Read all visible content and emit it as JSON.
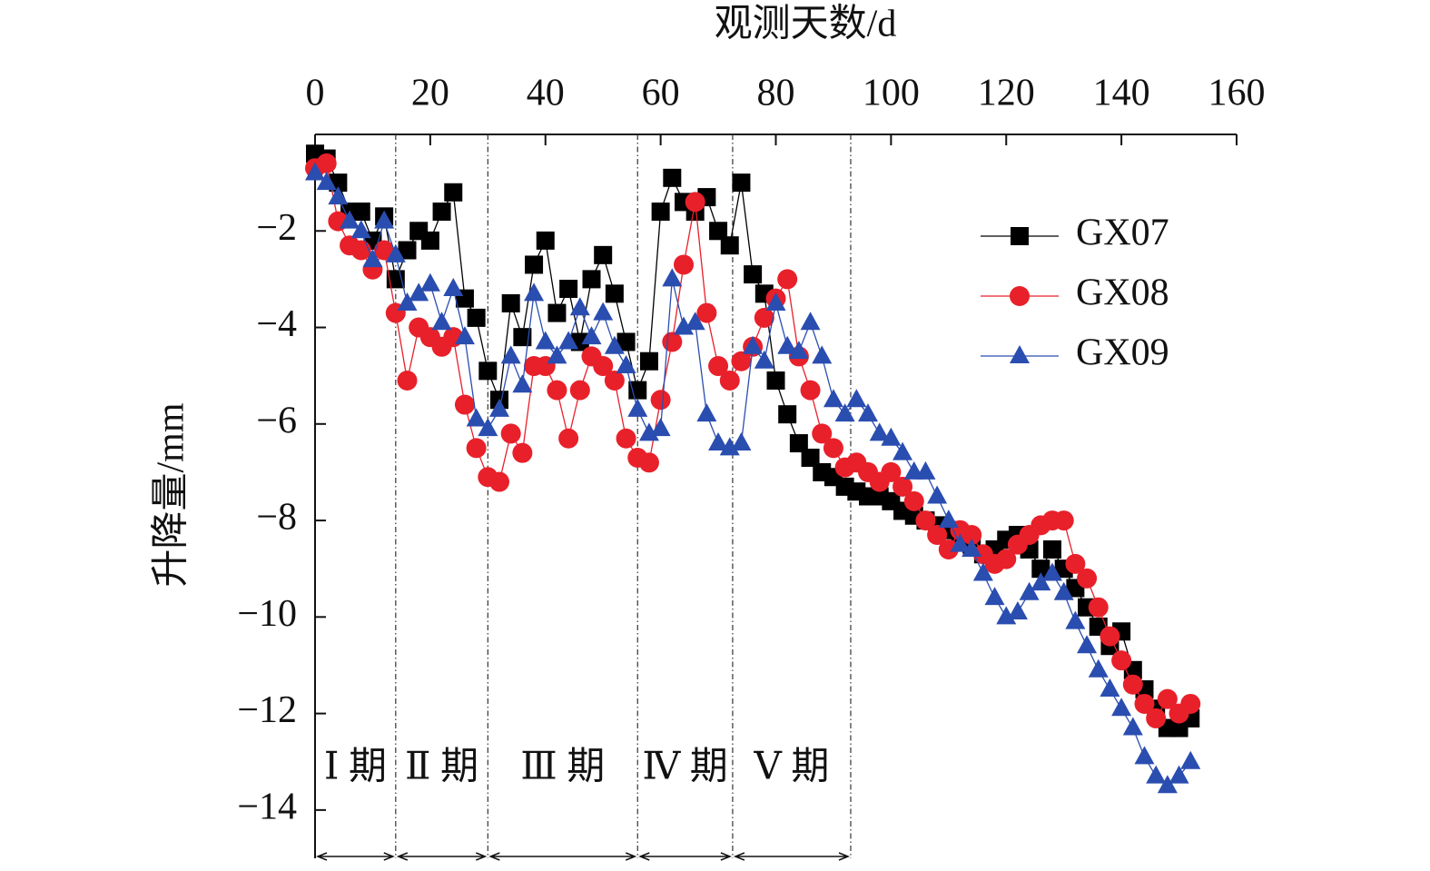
{
  "chart_data": {
    "type": "line",
    "x_label": "观测天数/d",
    "y_label": "升降量/mm",
    "xlim": [
      0,
      160
    ],
    "xticks": [
      0,
      20,
      40,
      60,
      80,
      100,
      120,
      140,
      160
    ],
    "ylim": [
      -15,
      0
    ],
    "yticks": [
      {
        "value": -2,
        "label": "−2"
      },
      {
        "value": -4,
        "label": "−4"
      },
      {
        "value": -6,
        "label": "−6"
      },
      {
        "value": -8,
        "label": "−8"
      },
      {
        "value": -10,
        "label": "−10"
      },
      {
        "value": -12,
        "label": "−12"
      },
      {
        "value": -14,
        "label": "−14"
      }
    ],
    "legend": "upper right",
    "period_bounds": [
      0,
      14,
      30,
      56,
      72.5,
      93
    ],
    "period_labels": [
      "Ⅰ 期",
      "Ⅱ 期",
      "Ⅲ 期",
      "Ⅳ 期",
      "Ⅴ 期"
    ],
    "x": [
      0,
      2,
      4,
      6,
      8,
      10,
      12,
      14,
      16,
      18,
      20,
      22,
      24,
      26,
      28,
      30,
      32,
      34,
      36,
      38,
      40,
      42,
      44,
      46,
      48,
      50,
      52,
      54,
      56,
      58,
      60,
      62,
      64,
      66,
      68,
      70,
      72,
      74,
      76,
      78,
      80,
      82,
      84,
      86,
      88,
      90,
      92,
      94,
      96,
      98,
      100,
      102,
      104,
      106,
      108,
      110,
      112,
      114,
      116,
      118,
      120,
      122,
      124,
      126,
      128,
      130,
      132,
      134,
      136,
      138,
      140,
      142,
      144,
      146,
      148,
      150,
      152
    ],
    "series": [
      {
        "name": "GX07",
        "color": "#000000",
        "marker": "square",
        "values": [
          -0.4,
          -0.5,
          -1.0,
          -1.6,
          -1.6,
          -2.2,
          -1.7,
          -3.0,
          -2.4,
          -2.0,
          -2.2,
          -1.6,
          -1.2,
          -3.4,
          -3.8,
          -4.9,
          -5.5,
          -3.5,
          -4.2,
          -2.7,
          -2.2,
          -3.7,
          -3.2,
          -4.3,
          -3.0,
          -2.5,
          -3.3,
          -4.3,
          -5.3,
          -4.7,
          -1.6,
          -0.9,
          -1.4,
          -1.6,
          -1.3,
          -2.0,
          -2.3,
          -1.0,
          -2.9,
          -3.3,
          -5.1,
          -5.8,
          -6.4,
          -6.7,
          -7.0,
          -7.1,
          -7.3,
          -7.4,
          -7.5,
          -7.5,
          -7.6,
          -7.8,
          -7.9,
          -8.0,
          -8.1,
          -8.2,
          -8.3,
          -8.5,
          -8.7,
          -8.6,
          -8.4,
          -8.3,
          -8.6,
          -9.0,
          -8.6,
          -9.0,
          -9.4,
          -9.8,
          -10.2,
          -10.6,
          -10.3,
          -11.1,
          -11.5,
          -11.9,
          -12.3,
          -12.3,
          -12.1
        ]
      },
      {
        "name": "GX08",
        "color": "#e8202a",
        "marker": "circle",
        "values": [
          -0.7,
          -0.6,
          -1.8,
          -2.3,
          -2.4,
          -2.8,
          -2.4,
          -3.7,
          -5.1,
          -4.0,
          -4.2,
          -4.4,
          -4.2,
          -5.6,
          -6.5,
          -7.1,
          -7.2,
          -6.2,
          -6.6,
          -4.8,
          -4.8,
          -5.3,
          -6.3,
          -5.3,
          -4.6,
          -4.8,
          -5.1,
          -6.3,
          -6.7,
          -6.8,
          -5.5,
          -4.3,
          -2.7,
          -1.4,
          -3.7,
          -4.8,
          -5.1,
          -4.7,
          -4.4,
          -3.8,
          -3.4,
          -3.0,
          -4.6,
          -5.3,
          -6.2,
          -6.5,
          -6.9,
          -6.8,
          -7.0,
          -7.2,
          -7.0,
          -7.3,
          -7.6,
          -8.0,
          -8.3,
          -8.6,
          -8.2,
          -8.3,
          -8.7,
          -8.9,
          -8.8,
          -8.5,
          -8.3,
          -8.1,
          -8.0,
          -8.0,
          -8.9,
          -9.2,
          -9.8,
          -10.4,
          -10.9,
          -11.4,
          -11.8,
          -12.1,
          -11.7,
          -12.0,
          -11.8
        ]
      },
      {
        "name": "GX09",
        "color": "#2a4db0",
        "marker": "triangle",
        "values": [
          -0.8,
          -1.0,
          -1.3,
          -1.8,
          -2.0,
          -2.6,
          -1.8,
          -2.5,
          -3.5,
          -3.3,
          -3.1,
          -3.9,
          -3.2,
          -4.2,
          -5.9,
          -6.1,
          -5.7,
          -4.6,
          -5.2,
          -3.3,
          -4.3,
          -4.6,
          -4.3,
          -3.6,
          -4.2,
          -3.7,
          -4.4,
          -4.8,
          -5.7,
          -6.2,
          -6.1,
          -3.0,
          -4.0,
          -3.9,
          -5.8,
          -6.4,
          -6.5,
          -6.4,
          -4.4,
          -4.7,
          -3.5,
          -4.4,
          -4.5,
          -3.9,
          -4.6,
          -5.5,
          -5.8,
          -5.5,
          -5.8,
          -6.2,
          -6.3,
          -6.6,
          -7.0,
          -7.0,
          -7.5,
          -8.0,
          -8.5,
          -8.6,
          -9.1,
          -9.6,
          -10.0,
          -9.9,
          -9.5,
          -9.3,
          -9.1,
          -9.5,
          -10.1,
          -10.6,
          -11.1,
          -11.5,
          -11.9,
          -12.3,
          -12.9,
          -13.3,
          -13.5,
          -13.3,
          -13.0
        ]
      }
    ]
  }
}
